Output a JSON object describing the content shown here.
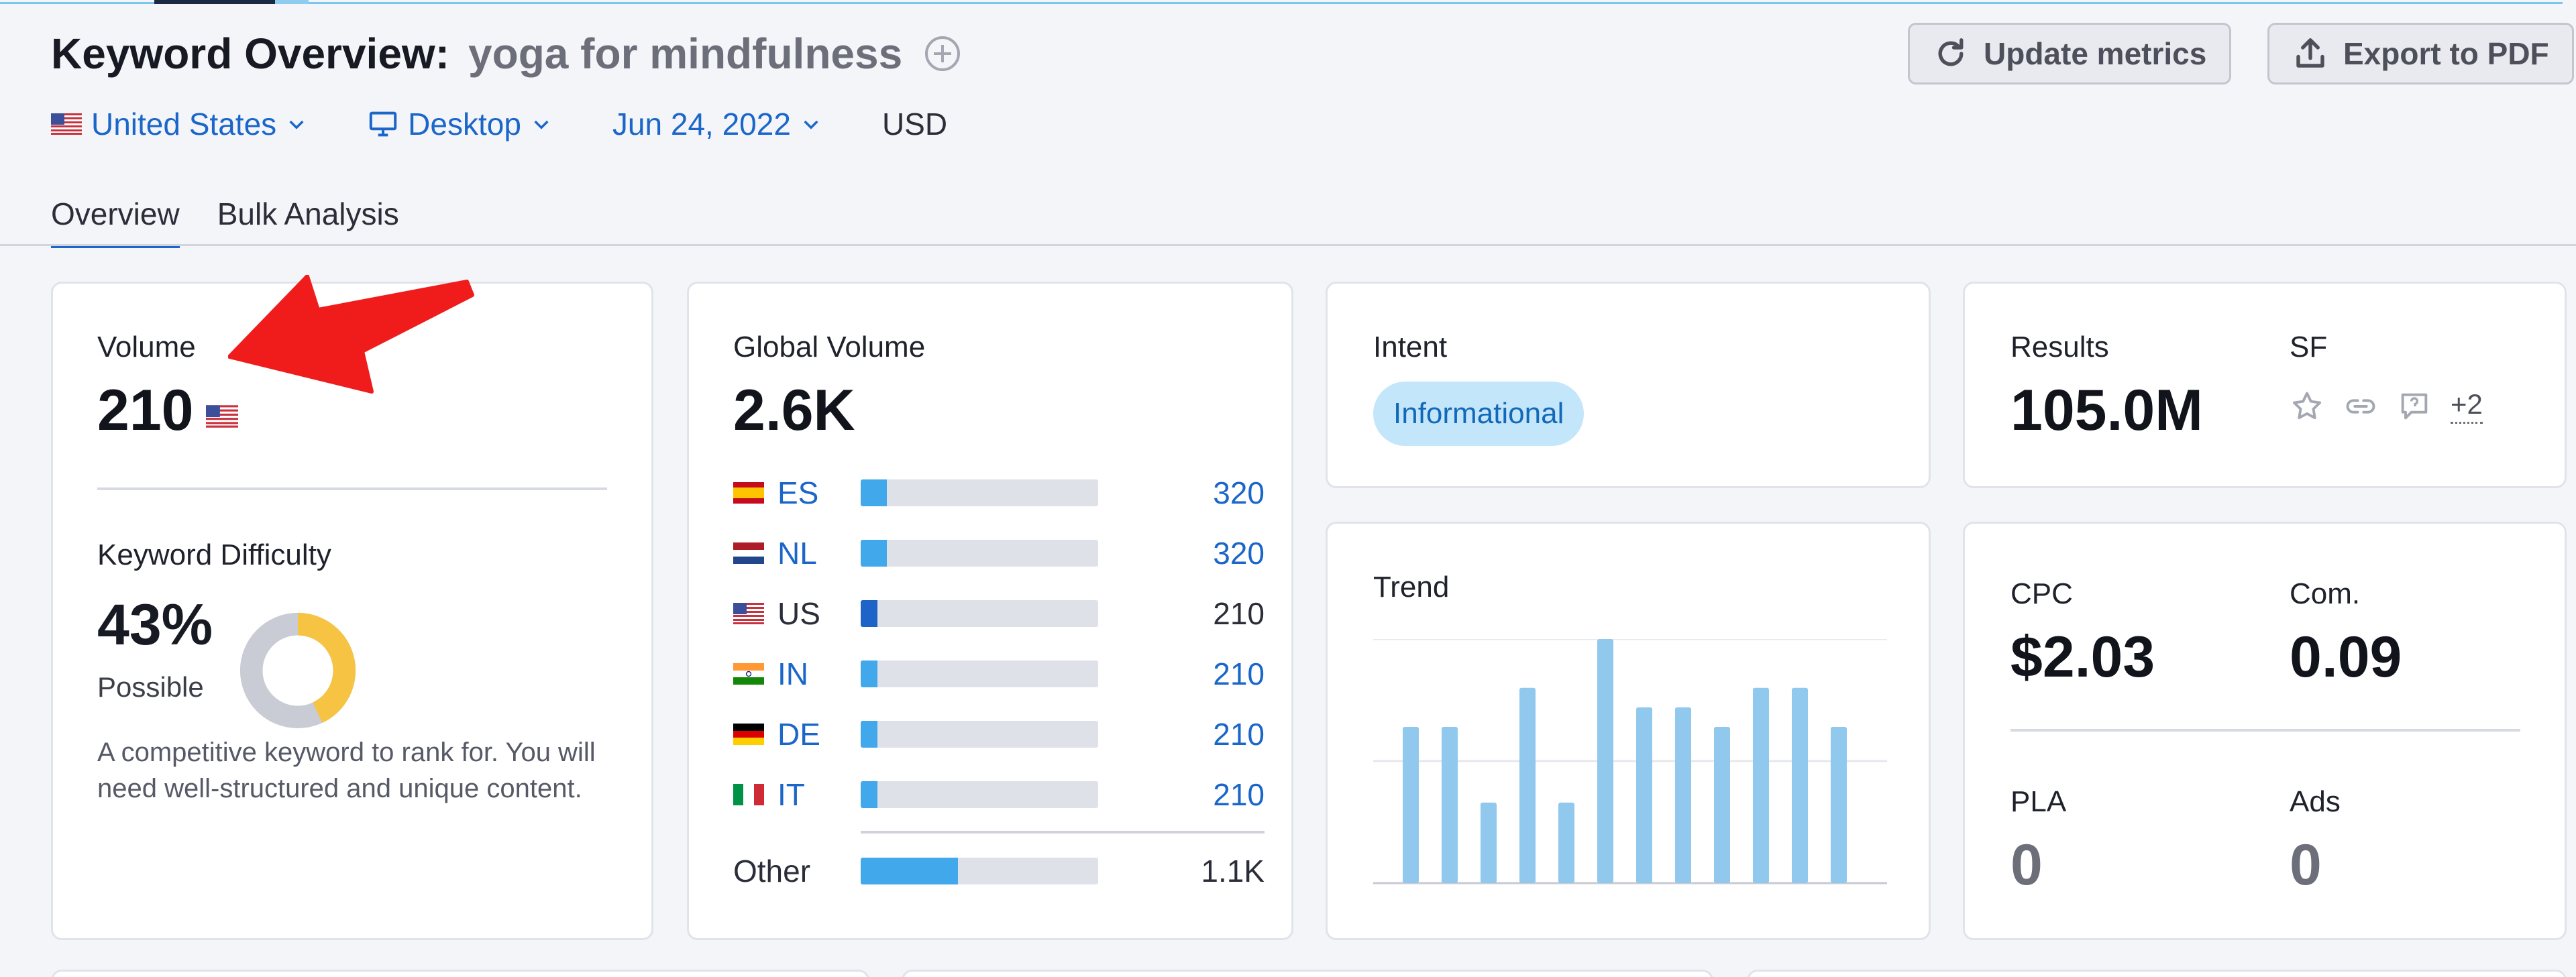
{
  "header": {
    "title": "Keyword Overview:",
    "keyword": "yoga for mindfulness",
    "update_label": "Update metrics",
    "export_label": "Export to PDF"
  },
  "filters": {
    "country": "United States",
    "device": "Desktop",
    "date": "Jun 24, 2022",
    "currency": "USD"
  },
  "tabs": [
    {
      "label": "Overview",
      "active": true
    },
    {
      "label": "Bulk Analysis",
      "active": false
    }
  ],
  "volume": {
    "label": "Volume",
    "value": "210"
  },
  "keyword_difficulty": {
    "label": "Keyword Difficulty",
    "value": "43%",
    "percent": 43,
    "level": "Possible",
    "description": "A competitive keyword to rank for. You will need well-structured and unique content.",
    "color": "#f6c343"
  },
  "global_volume": {
    "label": "Global Volume",
    "value": "2.6K",
    "countries": [
      {
        "code": "ES",
        "value": "320",
        "fill": 0.11,
        "link": true
      },
      {
        "code": "NL",
        "value": "320",
        "fill": 0.11,
        "link": true
      },
      {
        "code": "US",
        "value": "210",
        "fill": 0.07,
        "link": false
      },
      {
        "code": "IN",
        "value": "210",
        "fill": 0.07,
        "link": true
      },
      {
        "code": "DE",
        "value": "210",
        "fill": 0.07,
        "link": true
      },
      {
        "code": "IT",
        "value": "210",
        "fill": 0.07,
        "link": true
      }
    ],
    "other": {
      "label": "Other",
      "value": "1.1K",
      "fill": 0.41
    }
  },
  "intent": {
    "label": "Intent",
    "value": "Informational"
  },
  "trend": {
    "label": "Trend",
    "values": [
      0.64,
      0.64,
      0.33,
      0.8,
      0.33,
      1.0,
      0.72,
      0.72,
      0.64,
      0.8,
      0.8,
      0.64
    ]
  },
  "results": {
    "label": "Results",
    "value": "105.0M",
    "sf_label": "SF",
    "sf_more": "+2",
    "sf_icons": [
      "star-icon",
      "link-icon",
      "review-icon"
    ]
  },
  "cpc": {
    "cpc_label": "CPC",
    "cpc_value": "$2.03",
    "com_label": "Com.",
    "com_value": "0.09",
    "pla_label": "PLA",
    "pla_value": "0",
    "ads_label": "Ads",
    "ads_value": "0"
  },
  "colors": {
    "accent": "#1a66c9",
    "bar": "#42a8ec",
    "trend_bar": "#90c8ee",
    "annotation_arrow": "#f01c1c"
  }
}
